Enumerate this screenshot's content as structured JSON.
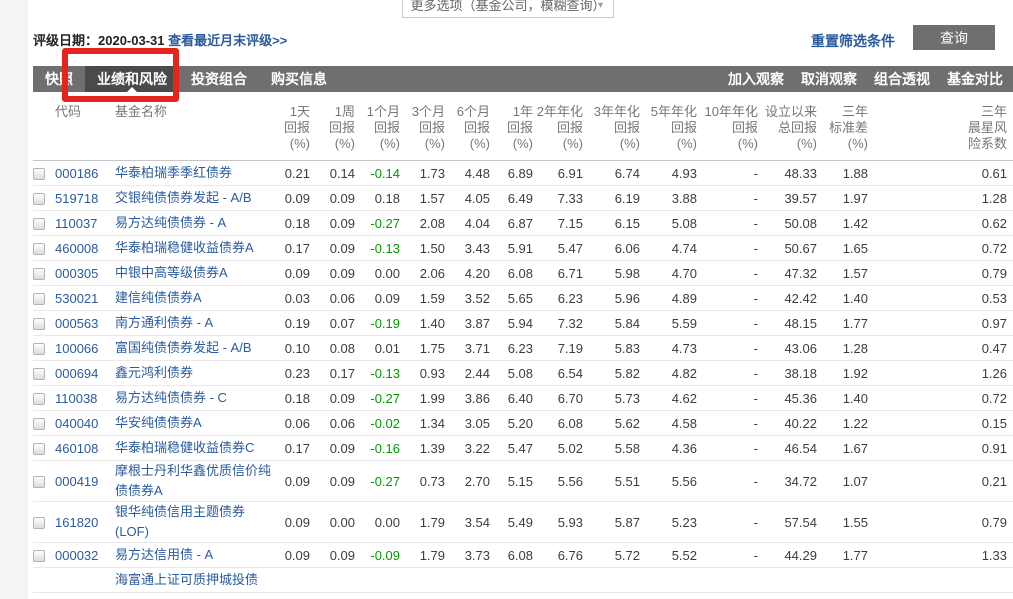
{
  "colors": {
    "link_blue": "#2a5b9e",
    "tabbar_gray": "#6f6f6f",
    "active_tab_gray": "#4a4a4a",
    "button_gray": "#6f6f6f",
    "annotation_red": "#e5241d",
    "negative_green": "#009b00",
    "text_dark": "#3d3d3d",
    "header_gray": "#777777"
  },
  "page": {
    "more_options": {
      "label": "更多选项（基金公司，模糊查询）",
      "chevron_icon": "▾"
    },
    "rating_date": {
      "label": "评级日期：",
      "date": "2020-03-31",
      "link": "查看最近月末评级>>"
    },
    "actions": {
      "reset_label": "重置筛选条件",
      "query_label": "查询"
    },
    "annotation": {
      "type": "red-highlight-box",
      "highlights": "业绩和风险"
    }
  },
  "tabs": {
    "items": [
      {
        "id": "snapshot",
        "label": "快照",
        "active": false
      },
      {
        "id": "performance-and-risk",
        "label": "业绩和风险",
        "active": true
      },
      {
        "id": "investment-portfolio",
        "label": "投资组合",
        "active": false
      },
      {
        "id": "purchase-info",
        "label": "购买信息",
        "active": false
      }
    ],
    "right_actions": [
      {
        "id": "add-watch-button",
        "label": "加入观察"
      },
      {
        "id": "remove-watch-button",
        "label": "取消观察"
      },
      {
        "id": "portfolio-xray-button",
        "label": "组合透视"
      },
      {
        "id": "fund-compare-button",
        "label": "基金对比"
      }
    ]
  },
  "table": {
    "headers": [
      {
        "id": "code",
        "lines": [
          "代码"
        ]
      },
      {
        "id": "fund-name",
        "lines": [
          "基金名称"
        ]
      },
      {
        "id": "return-1d",
        "lines": [
          "1天",
          "回报",
          "(%)"
        ]
      },
      {
        "id": "return-1w",
        "lines": [
          "1周",
          "回报",
          "(%)"
        ]
      },
      {
        "id": "return-1m",
        "lines": [
          "1个月",
          "回报",
          "(%)"
        ]
      },
      {
        "id": "return-3m",
        "lines": [
          "3个月",
          "回报",
          "(%)"
        ]
      },
      {
        "id": "return-6m",
        "lines": [
          "6个月",
          "回报",
          "(%)"
        ]
      },
      {
        "id": "return-1y",
        "lines": [
          "1年",
          "回报",
          "(%)"
        ]
      },
      {
        "id": "return-2y-ann",
        "lines": [
          "2年年化",
          "回报",
          "(%)"
        ]
      },
      {
        "id": "return-3y-ann",
        "lines": [
          "3年年化",
          "回报",
          "(%)"
        ]
      },
      {
        "id": "return-5y-ann",
        "lines": [
          "5年年化",
          "回报",
          "(%)"
        ]
      },
      {
        "id": "return-10y-ann",
        "lines": [
          "10年年化",
          "回报",
          "(%)"
        ]
      },
      {
        "id": "return-since-inception",
        "lines": [
          "设立以来",
          "总回报",
          "(%)"
        ]
      },
      {
        "id": "stddev-3y",
        "lines": [
          "三年",
          "标准差",
          "(%)"
        ]
      },
      {
        "id": "morningstar-risk-3y",
        "lines": [
          "三年",
          "晨星风",
          "险系数"
        ]
      }
    ],
    "rows": [
      {
        "code": "000186",
        "name": "华泰柏瑞季季红债券",
        "values": [
          "0.21",
          "0.14",
          "-0.14",
          "1.73",
          "4.48",
          "6.89",
          "6.91",
          "6.74",
          "4.93",
          "-",
          "48.33",
          "1.88",
          "0.61"
        ]
      },
      {
        "code": "519718",
        "name": "交银纯债债券发起 - A/B",
        "values": [
          "0.09",
          "0.09",
          "0.18",
          "1.57",
          "4.05",
          "6.49",
          "7.33",
          "6.19",
          "3.88",
          "-",
          "39.57",
          "1.97",
          "1.28"
        ]
      },
      {
        "code": "110037",
        "name": "易方达纯债债券 - A",
        "values": [
          "0.18",
          "0.09",
          "-0.27",
          "2.08",
          "4.04",
          "6.87",
          "7.15",
          "6.15",
          "5.08",
          "-",
          "50.08",
          "1.42",
          "0.62"
        ]
      },
      {
        "code": "460008",
        "name": "华泰柏瑞稳健收益债券A",
        "values": [
          "0.17",
          "0.09",
          "-0.13",
          "1.50",
          "3.43",
          "5.91",
          "5.47",
          "6.06",
          "4.74",
          "-",
          "50.67",
          "1.65",
          "0.72"
        ]
      },
      {
        "code": "000305",
        "name": "中银中高等级债券A",
        "values": [
          "0.09",
          "0.09",
          "0.00",
          "2.06",
          "4.20",
          "6.08",
          "6.71",
          "5.98",
          "4.70",
          "-",
          "47.32",
          "1.57",
          "0.79"
        ]
      },
      {
        "code": "530021",
        "name": "建信纯债债券A",
        "values": [
          "0.03",
          "0.06",
          "0.09",
          "1.59",
          "3.52",
          "5.65",
          "6.23",
          "5.96",
          "4.89",
          "-",
          "42.42",
          "1.40",
          "0.53"
        ]
      },
      {
        "code": "000563",
        "name": "南方通利债券 - A",
        "values": [
          "0.19",
          "0.07",
          "-0.19",
          "1.40",
          "3.87",
          "5.94",
          "7.32",
          "5.84",
          "5.59",
          "-",
          "48.15",
          "1.77",
          "0.97"
        ]
      },
      {
        "code": "100066",
        "name": "富国纯债债券发起 - A/B",
        "values": [
          "0.10",
          "0.08",
          "0.01",
          "1.75",
          "3.71",
          "6.23",
          "7.19",
          "5.83",
          "4.73",
          "-",
          "43.06",
          "1.28",
          "0.47"
        ]
      },
      {
        "code": "000694",
        "name": "鑫元鸿利债券",
        "values": [
          "0.23",
          "0.17",
          "-0.13",
          "0.93",
          "2.44",
          "5.08",
          "6.54",
          "5.82",
          "4.82",
          "-",
          "38.18",
          "1.92",
          "1.26"
        ]
      },
      {
        "code": "110038",
        "name": "易方达纯债债券 - C",
        "values": [
          "0.18",
          "0.09",
          "-0.27",
          "1.99",
          "3.86",
          "6.40",
          "6.70",
          "5.73",
          "4.62",
          "-",
          "45.36",
          "1.40",
          "0.72"
        ]
      },
      {
        "code": "040040",
        "name": "华安纯债债券A",
        "values": [
          "0.06",
          "0.06",
          "-0.02",
          "1.34",
          "3.05",
          "5.20",
          "6.08",
          "5.62",
          "4.58",
          "-",
          "40.22",
          "1.22",
          "0.15"
        ]
      },
      {
        "code": "460108",
        "name": "华泰柏瑞稳健收益债券C",
        "values": [
          "0.17",
          "0.09",
          "-0.16",
          "1.39",
          "3.22",
          "5.47",
          "5.02",
          "5.58",
          "4.36",
          "-",
          "46.54",
          "1.67",
          "0.91"
        ]
      },
      {
        "code": "000419",
        "name": "摩根士丹利华鑫优质信价纯债债券A",
        "values": [
          "0.09",
          "0.09",
          "-0.27",
          "0.73",
          "2.70",
          "5.15",
          "5.56",
          "5.51",
          "5.56",
          "-",
          "34.72",
          "1.07",
          "0.21"
        ]
      },
      {
        "code": "161820",
        "name": "银华纯债信用主题债券(LOF)",
        "values": [
          "0.09",
          "0.00",
          "0.00",
          "1.79",
          "3.54",
          "5.49",
          "5.93",
          "5.87",
          "5.23",
          "-",
          "57.54",
          "1.55",
          "0.79"
        ]
      },
      {
        "code": "000032",
        "name": "易方达信用债 - A",
        "values": [
          "0.09",
          "0.09",
          "-0.09",
          "1.79",
          "3.73",
          "6.08",
          "6.76",
          "5.72",
          "5.52",
          "-",
          "44.29",
          "1.77",
          "1.33"
        ]
      },
      {
        "code": "",
        "name": "海富通上证可质押城投债",
        "values": [],
        "partial": true
      }
    ]
  }
}
